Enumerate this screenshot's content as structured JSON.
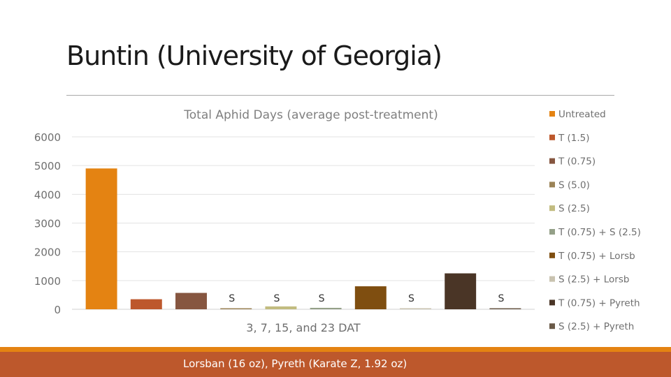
{
  "slide": {
    "title": "Buntin (University of Georgia)",
    "footer": "Lorsban (16 oz), Pyreth (Karate Z, 1.92 oz)"
  },
  "chart_data": {
    "type": "bar",
    "title": "Total Aphid Days (average post-treatment)",
    "xlabel": "3, 7, 15, and 23 DAT",
    "ylabel": "",
    "ylim": [
      0,
      6000
    ],
    "y_ticks": [
      0,
      1000,
      2000,
      3000,
      4000,
      5000,
      6000
    ],
    "grid": true,
    "legend_position": "right",
    "series": [
      {
        "name": "Untreated",
        "value": 4900,
        "color": "#e48312",
        "annotation": ""
      },
      {
        "name": "T (1.5)",
        "value": 350,
        "color": "#bd582c",
        "annotation": ""
      },
      {
        "name": "T (0.75)",
        "value": 570,
        "color": "#865640",
        "annotation": ""
      },
      {
        "name": "S (5.0)",
        "value": 20,
        "color": "#9b8357",
        "annotation": "S"
      },
      {
        "name": "S (2.5)",
        "value": 100,
        "color": "#c2bc80",
        "annotation": "S"
      },
      {
        "name": "T (0.75) + S (2.5)",
        "value": 50,
        "color": "#94a088",
        "annotation": "S"
      },
      {
        "name": "T (0.75) + Lorsb",
        "value": 800,
        "color": "#7f4e10",
        "annotation": ""
      },
      {
        "name": "S (2.5) + Lorsb",
        "value": 30,
        "color": "#c9c3b0",
        "annotation": "S"
      },
      {
        "name": "T (0.75) + Pyreth",
        "value": 1250,
        "color": "#4a3526",
        "annotation": ""
      },
      {
        "name": "S (2.5) + Pyreth",
        "value": 10,
        "color": "#6a5a48",
        "annotation": "S"
      }
    ]
  }
}
